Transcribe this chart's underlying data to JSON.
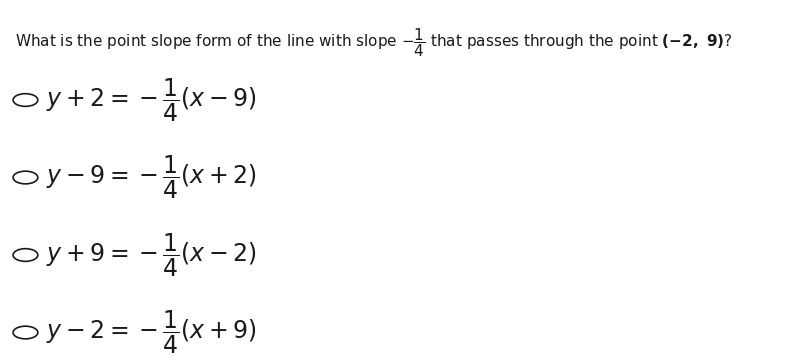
{
  "background_color": "#ffffff",
  "question_text": "What is the point slope form of the line with slope",
  "slope_fraction_num": "1",
  "slope_fraction_den": "4",
  "point_text": "(-2,\\ 9)",
  "options": [
    "y + 2 = -\\dfrac{1}{4}(x - 9)",
    "y - 9 = -\\dfrac{1}{4}(x + 2)",
    "y + 9 = -\\dfrac{1}{4}(x - 2)",
    "y - 2 = -\\dfrac{1}{4}(x + 9)"
  ],
  "question_fontsize": 11,
  "option_fontsize": 17,
  "text_color": "#1a1a1a",
  "fig_width": 8.0,
  "fig_height": 3.62,
  "dpi": 100
}
